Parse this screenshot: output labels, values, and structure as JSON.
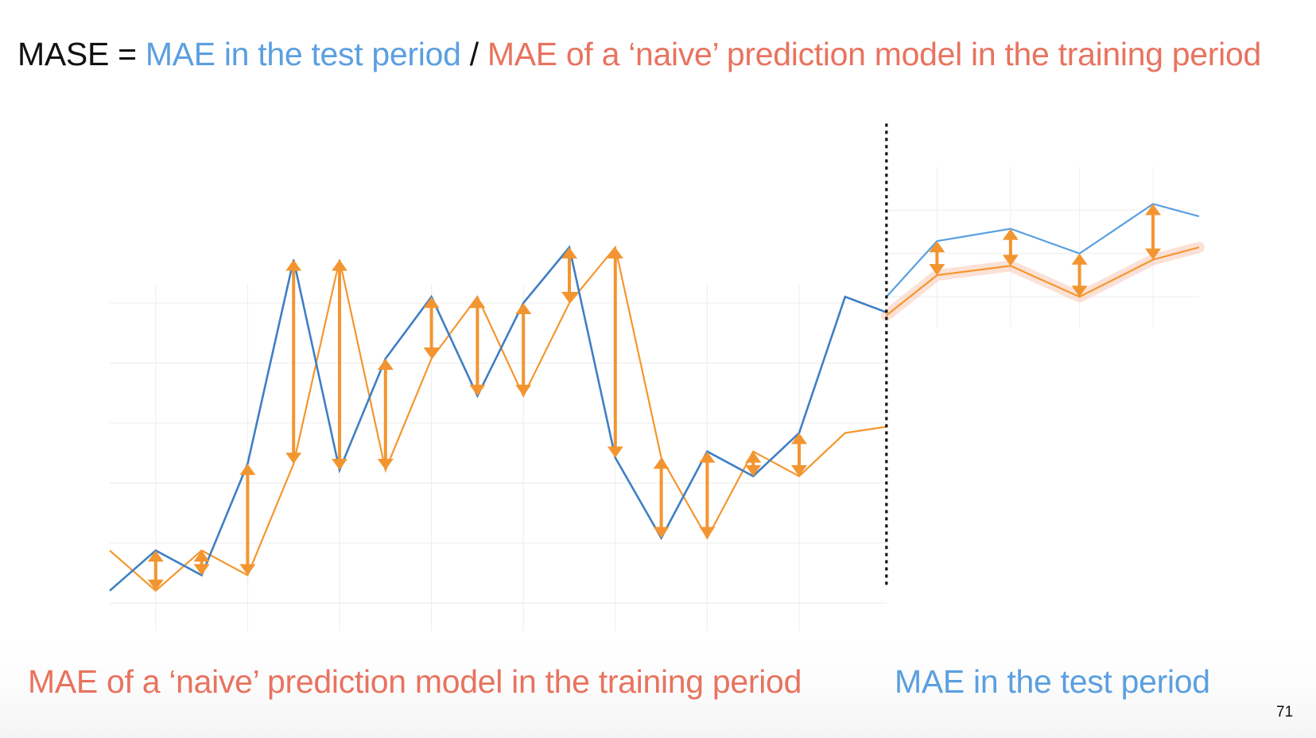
{
  "formula": {
    "lhs": "MASE =",
    "numerator": "MAE in the test period",
    "divider": "/",
    "denominator": "MAE of a ‘naive’ prediction model in the training period"
  },
  "labels": {
    "training": "MAE of a ‘naive’ prediction model in the training period",
    "test": "MAE in the test period"
  },
  "page_number": "71",
  "colors": {
    "actual": "#3f7fc4",
    "test_actual": "#5b9fe0",
    "naive": "#f5962e",
    "arrow": "#f29530",
    "forecast_band": "#f8c9b4",
    "text_red": "#e8735f",
    "text_blue": "#5b9fe0"
  },
  "chart_data": {
    "type": "line",
    "title": "",
    "xlabel": "",
    "ylabel": "",
    "grid": true,
    "xlim": [
      0,
      22.3
    ],
    "ylim": [
      -0.7,
      10
    ],
    "split_x": 16.9,
    "split_line_style": "dotted",
    "training": {
      "x": [
        0,
        1,
        2,
        3,
        4,
        5,
        6,
        7,
        8,
        9,
        10,
        11,
        12,
        13,
        14,
        15,
        16,
        16.9
      ],
      "actual": [
        0.35,
        1.0,
        0.6,
        2.4,
        5.7,
        2.3,
        4.1,
        5.1,
        3.5,
        5.0,
        5.9,
        2.5,
        1.2,
        2.6,
        2.2,
        2.9,
        5.1,
        4.85
      ],
      "naive": [
        1.0,
        0.35,
        1.0,
        0.6,
        2.4,
        5.7,
        2.3,
        4.1,
        5.1,
        3.5,
        5.0,
        5.9,
        2.5,
        1.2,
        2.6,
        2.2,
        2.9,
        3.0
      ],
      "error_arrows_at": [
        1,
        2,
        3,
        4,
        5,
        6,
        7,
        8,
        9,
        10,
        11,
        12,
        13,
        14,
        15
      ]
    },
    "test": {
      "x": [
        16.9,
        18,
        19.6,
        21.1,
        22.7,
        23.7
      ],
      "actual": [
        5.1,
        6.0,
        6.2,
        5.8,
        6.6,
        6.4
      ],
      "forecast": [
        4.8,
        5.45,
        5.6,
        5.1,
        5.7,
        5.9
      ],
      "error_arrows_at": [
        18,
        19.6,
        21.1,
        22.7
      ]
    }
  }
}
